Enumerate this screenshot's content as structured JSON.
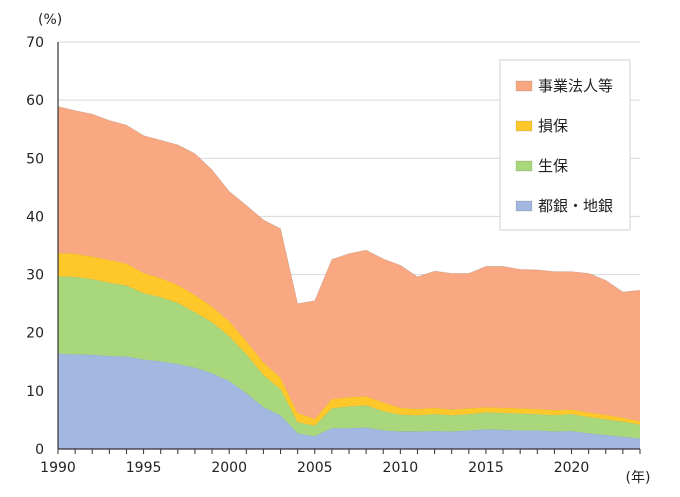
{
  "chart_data": {
    "type": "area",
    "stacked": true,
    "y_unit_label": "(%)",
    "x_unit_label": "(年)",
    "xlim": [
      1990,
      2024
    ],
    "ylim": [
      0,
      70
    ],
    "x_ticks": [
      1990,
      1995,
      2000,
      2005,
      2010,
      2015,
      2020
    ],
    "y_ticks": [
      0,
      10,
      20,
      30,
      40,
      50,
      60,
      70
    ],
    "grid": "horizontal",
    "legend_position": "top-right",
    "x": [
      1990,
      1991,
      1992,
      1993,
      1994,
      1995,
      1996,
      1997,
      1998,
      1999,
      2000,
      2001,
      2002,
      2003,
      2004,
      2005,
      2006,
      2007,
      2008,
      2009,
      2010,
      2011,
      2012,
      2013,
      2014,
      2015,
      2016,
      2017,
      2018,
      2019,
      2020,
      2021,
      2022,
      2023,
      2024
    ],
    "series": [
      {
        "name": "都銀・地銀",
        "color": "#A3B8E0",
        "values": [
          16.4,
          16.3,
          16.2,
          16.0,
          15.9,
          15.4,
          15.1,
          14.6,
          14.0,
          13.0,
          11.7,
          9.6,
          7.2,
          5.8,
          2.7,
          2.2,
          3.6,
          3.6,
          3.7,
          3.2,
          3.0,
          3.0,
          3.1,
          3.0,
          3.2,
          3.4,
          3.3,
          3.2,
          3.2,
          3.0,
          3.1,
          2.7,
          2.4,
          2.1,
          1.8
        ]
      },
      {
        "name": "生保",
        "color": "#A8D77C",
        "values": [
          13.3,
          13.3,
          13.0,
          12.6,
          12.2,
          11.4,
          11.0,
          10.5,
          9.5,
          8.8,
          7.7,
          6.7,
          5.5,
          4.5,
          1.9,
          1.8,
          3.4,
          3.7,
          3.8,
          3.3,
          2.9,
          2.8,
          2.9,
          2.8,
          2.8,
          2.9,
          2.9,
          2.9,
          2.8,
          2.8,
          2.9,
          2.8,
          2.7,
          2.6,
          2.4
        ]
      },
      {
        "name": "損保",
        "color": "#FFC82A",
        "values": [
          4.0,
          4.0,
          3.9,
          3.9,
          3.8,
          3.5,
          3.3,
          3.1,
          3.0,
          2.7,
          2.6,
          2.3,
          2.2,
          2.0,
          1.6,
          1.2,
          1.6,
          1.6,
          1.6,
          1.5,
          1.2,
          1.1,
          1.1,
          1.0,
          1.0,
          0.9,
          0.9,
          0.9,
          0.9,
          0.9,
          0.8,
          0.8,
          0.8,
          0.7,
          0.6
        ]
      },
      {
        "name": "事業法人等",
        "color": "#F9A882",
        "values": [
          25.2,
          24.6,
          24.5,
          24.0,
          23.8,
          23.6,
          23.7,
          24.1,
          24.3,
          23.5,
          22.3,
          23.3,
          24.5,
          25.6,
          18.8,
          20.3,
          24.0,
          24.7,
          25.1,
          24.7,
          24.5,
          22.7,
          23.5,
          23.4,
          23.2,
          24.2,
          24.3,
          23.9,
          23.9,
          23.8,
          23.7,
          23.9,
          23.1,
          21.6,
          22.5
        ]
      }
    ],
    "legend_order": [
      "事業法人等",
      "損保",
      "生保",
      "都銀・地銀"
    ]
  }
}
